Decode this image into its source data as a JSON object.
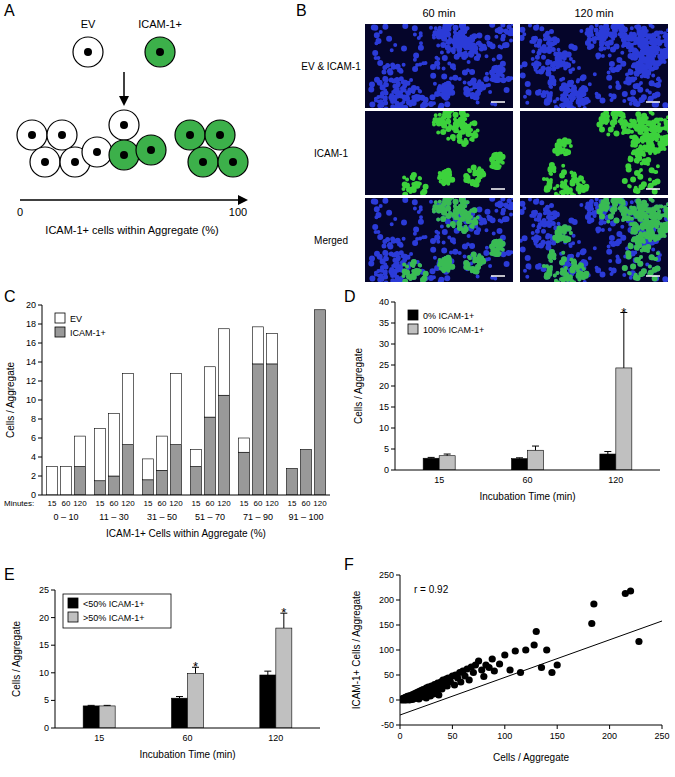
{
  "diagram_a": {
    "panel": "A",
    "ev_label": "EV",
    "icam_label": "ICAM-1+",
    "axis_start": "0",
    "axis_end": "100",
    "axis_label": "ICAM-1+ cells within Aggregate (%)",
    "colors": {
      "ev": "#ffffff",
      "icam": "#3cb04a"
    }
  },
  "images_b": {
    "panel": "B",
    "columns": [
      "60 min",
      "120 min"
    ],
    "rows": [
      "EV & ICAM-1",
      "ICAM-1",
      "Merged"
    ],
    "colors": {
      "background": "#05052a",
      "nuclei": "#2b3bd8",
      "icam": "#3cd23c"
    }
  },
  "chart_data": [
    {
      "panel": "C",
      "type": "bar",
      "stacked": true,
      "legend": "top-left",
      "categories": [
        "15",
        "60",
        "120",
        "15",
        "60",
        "120",
        "15",
        "60",
        "120",
        "15",
        "60",
        "120",
        "15",
        "60",
        "120",
        "15",
        "60",
        "120"
      ],
      "category_groups": [
        "0 – 10",
        "11 – 30",
        "31 – 50",
        "51 – 70",
        "71 – 90",
        "91 – 100"
      ],
      "categories_label": "Minutes:",
      "x_label": "ICAM-1+ Cells within Aggregate (%)",
      "y_label": "Cells / Aggregate",
      "ylim": [
        0,
        20
      ],
      "yticks": [
        0,
        2,
        4,
        6,
        8,
        10,
        12,
        14,
        16,
        18,
        20
      ],
      "series": [
        {
          "name": "EV",
          "color": "#ffffff",
          "values": [
            3,
            3,
            3.2,
            5.5,
            6.6,
            7.5,
            2.2,
            3.6,
            7.5,
            1.8,
            5.3,
            7.0,
            1.5,
            3.9,
            3.2,
            0,
            0,
            0
          ]
        },
        {
          "name": "ICAM-1+",
          "color": "#999999",
          "values": [
            0,
            0,
            3.0,
            1.5,
            2.0,
            5.3,
            1.6,
            2.6,
            5.3,
            3.0,
            8.2,
            10.5,
            4.5,
            13.8,
            13.8,
            2.8,
            4.8,
            19.5
          ]
        }
      ]
    },
    {
      "panel": "D",
      "type": "bar",
      "legend": "top-left",
      "categories": [
        "15",
        "60",
        "120"
      ],
      "x_label": "Incubation Time (min)",
      "y_label": "Cells / Aggregate",
      "ylim": [
        0,
        40
      ],
      "yticks": [
        0,
        5,
        10,
        15,
        20,
        25,
        30,
        35,
        40
      ],
      "series": [
        {
          "name": "0% ICAM-1+",
          "color": "#000000",
          "values": [
            2.8,
            2.7,
            3.8
          ],
          "errors": [
            0.2,
            0.2,
            0.6
          ],
          "significance": [
            null,
            null,
            null
          ]
        },
        {
          "name": "100% ICAM-1+",
          "color": "#c0c0c0",
          "values": [
            3.4,
            4.7,
            24.3
          ],
          "errors": [
            0.4,
            1.0,
            13.2
          ],
          "significance": [
            null,
            null,
            "*"
          ]
        }
      ]
    },
    {
      "panel": "E",
      "type": "bar",
      "legend": "top-left",
      "categories": [
        "15",
        "60",
        "120"
      ],
      "x_label": "Incubation Time (min)",
      "y_label": "Cells / Aggregate",
      "ylim": [
        0,
        25
      ],
      "yticks": [
        0,
        5,
        10,
        15,
        20,
        25
      ],
      "series": [
        {
          "name": "<50% ICAM-1+",
          "color": "#000000",
          "values": [
            4.0,
            5.4,
            9.6
          ],
          "errors": [
            0.1,
            0.3,
            0.7
          ],
          "significance": [
            null,
            null,
            null
          ]
        },
        {
          "name": ">50% ICAM-1+",
          "color": "#c0c0c0",
          "values": [
            4.0,
            9.9,
            18.1
          ],
          "errors": [
            0.1,
            1.1,
            2.7
          ],
          "significance": [
            null,
            "*",
            "*"
          ]
        }
      ]
    },
    {
      "panel": "F",
      "type": "scatter",
      "color": "#000000",
      "marker": "circle",
      "x_label": "Cells / Aggregate",
      "y_label": "ICAM-1+ Cells / Aggregate",
      "annotation": "r = 0.92",
      "xlim": [
        0,
        250
      ],
      "ylim": [
        -50,
        250
      ],
      "xticks": [
        0,
        50,
        100,
        150,
        200,
        250
      ],
      "yticks": [
        -50,
        0,
        50,
        100,
        150,
        200,
        250
      ],
      "x": [
        1,
        2,
        2,
        3,
        3,
        4,
        4,
        4,
        5,
        5,
        5,
        6,
        6,
        6,
        7,
        7,
        8,
        8,
        9,
        9,
        10,
        10,
        11,
        12,
        12,
        13,
        14,
        14,
        15,
        16,
        16,
        17,
        18,
        18,
        19,
        20,
        20,
        21,
        22,
        23,
        24,
        25,
        25,
        26,
        27,
        28,
        29,
        30,
        31,
        32,
        33,
        34,
        35,
        36,
        37,
        38,
        39,
        40,
        41,
        42,
        44,
        45,
        46,
        48,
        50,
        52,
        53,
        55,
        57,
        58,
        60,
        62,
        64,
        66,
        68,
        70,
        72,
        75,
        78,
        80,
        82,
        85,
        88,
        90,
        95,
        100,
        105,
        110,
        115,
        120,
        128,
        130,
        135,
        140,
        145,
        150,
        183,
        185,
        215,
        220,
        228
      ],
      "y": [
        1,
        0,
        2,
        1,
        3,
        0,
        2,
        4,
        1,
        3,
        5,
        0,
        4,
        6,
        2,
        7,
        3,
        8,
        0,
        5,
        2,
        9,
        6,
        1,
        11,
        7,
        3,
        13,
        9,
        5,
        15,
        12,
        2,
        17,
        10,
        6,
        19,
        14,
        21,
        9,
        18,
        4,
        24,
        15,
        26,
        20,
        8,
        28,
        22,
        12,
        31,
        25,
        18,
        34,
        10,
        30,
        36,
        22,
        40,
        33,
        42,
        28,
        44,
        37,
        48,
        30,
        50,
        44,
        55,
        36,
        58,
        48,
        62,
        40,
        66,
        55,
        70,
        78,
        60,
        47,
        70,
        65,
        82,
        58,
        72,
        90,
        60,
        98,
        55,
        100,
        110,
        137,
        65,
        100,
        55,
        70,
        153,
        192,
        213,
        218,
        117
      ],
      "fit_line": {
        "x": [
          0,
          250
        ],
        "y": [
          -30,
          158
        ]
      }
    }
  ]
}
